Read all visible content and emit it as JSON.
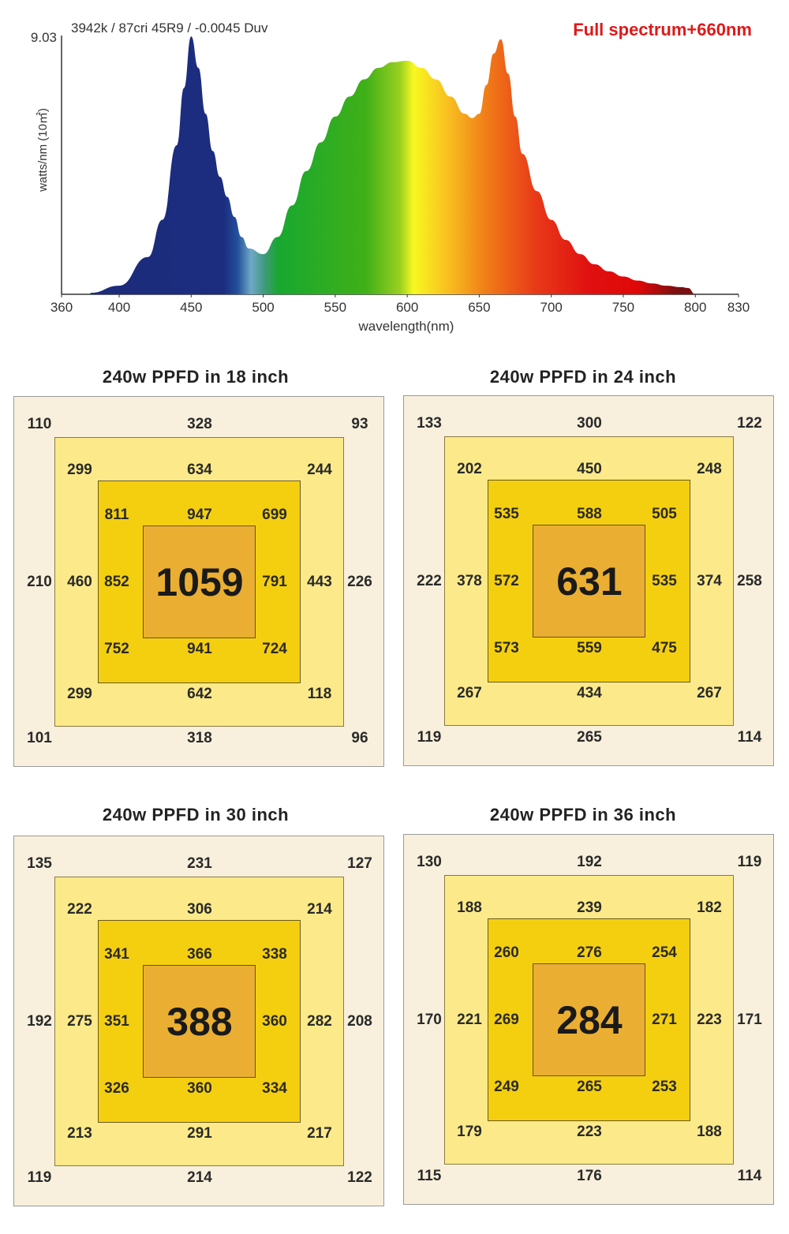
{
  "chart_data": [
    {
      "type": "area",
      "title": "Full spectrum+660nm",
      "subtitle": "3942k / 87cri 45R9 / -0.0045 Duv",
      "xlabel": "wavelength(nm)",
      "ylabel": "watts/nm (10㎡)",
      "ymax_label": "9.03",
      "xlim": [
        360,
        830
      ],
      "ylim": [
        0,
        9.03
      ],
      "x_ticks": [
        "360",
        "400",
        "450",
        "500",
        "550",
        "600",
        "650",
        "700",
        "750",
        "800",
        "830"
      ],
      "x": [
        380,
        400,
        420,
        430,
        440,
        445,
        450,
        455,
        460,
        465,
        470,
        475,
        480,
        485,
        490,
        500,
        510,
        520,
        530,
        540,
        550,
        560,
        570,
        580,
        590,
        600,
        610,
        620,
        630,
        640,
        645,
        650,
        655,
        660,
        665,
        670,
        675,
        680,
        690,
        700,
        710,
        720,
        730,
        740,
        750,
        760,
        770,
        780,
        790,
        795,
        800
      ],
      "values": [
        0.05,
        0.3,
        1.3,
        2.6,
        5.2,
        7.2,
        9.0,
        7.9,
        6.3,
        5.0,
        4.1,
        3.4,
        2.7,
        2.0,
        1.6,
        1.4,
        2.0,
        3.1,
        4.3,
        5.3,
        6.2,
        6.9,
        7.5,
        7.9,
        8.1,
        8.15,
        7.9,
        7.5,
        6.9,
        6.3,
        6.15,
        6.3,
        7.3,
        8.4,
        8.9,
        7.7,
        6.2,
        4.9,
        3.6,
        2.6,
        1.9,
        1.4,
        1.05,
        0.8,
        0.62,
        0.48,
        0.38,
        0.3,
        0.25,
        0.22,
        0.0
      ]
    },
    {
      "type": "heatmap",
      "title": "240w PPFD in 18 inch",
      "center": "1059",
      "ring3": {
        "tl": "811",
        "t": "947",
        "tr": "699",
        "l": "852",
        "r": "791",
        "bl": "752",
        "b": "941",
        "br": "724"
      },
      "ring2": {
        "tl": "299",
        "t": "634",
        "tr": "244",
        "l": "460",
        "r": "443",
        "bl": "299",
        "b": "642",
        "br": "118"
      },
      "ring1": {
        "tl": "110",
        "t": "328",
        "tr": "93",
        "l": "210",
        "r": "226",
        "bl": "101",
        "b": "318",
        "br": "96"
      }
    },
    {
      "type": "heatmap",
      "title": "240w PPFD in 24 inch",
      "center": "631",
      "ring3": {
        "tl": "535",
        "t": "588",
        "tr": "505",
        "l": "572",
        "r": "535",
        "bl": "573",
        "b": "559",
        "br": "475"
      },
      "ring2": {
        "tl": "202",
        "t": "450",
        "tr": "248",
        "l": "378",
        "r": "374",
        "bl": "267",
        "b": "434",
        "br": "267"
      },
      "ring1": {
        "tl": "133",
        "t": "300",
        "tr": "122",
        "l": "222",
        "r": "258",
        "bl": "119",
        "b": "265",
        "br": "114"
      }
    },
    {
      "type": "heatmap",
      "title": "240w PPFD in 30 inch",
      "center": "388",
      "ring3": {
        "tl": "341",
        "t": "366",
        "tr": "338",
        "l": "351",
        "r": "360",
        "bl": "326",
        "b": "360",
        "br": "334"
      },
      "ring2": {
        "tl": "222",
        "t": "306",
        "tr": "214",
        "l": "275",
        "r": "282",
        "bl": "213",
        "b": "291",
        "br": "217"
      },
      "ring1": {
        "tl": "135",
        "t": "231",
        "tr": "127",
        "l": "192",
        "r": "208",
        "bl": "119",
        "b": "214",
        "br": "122"
      }
    },
    {
      "type": "heatmap",
      "title": "240w PPFD in 36 inch",
      "center": "284",
      "ring3": {
        "tl": "260",
        "t": "276",
        "tr": "254",
        "l": "269",
        "r": "271",
        "bl": "249",
        "b": "265",
        "br": "253"
      },
      "ring2": {
        "tl": "188",
        "t": "239",
        "tr": "182",
        "l": "221",
        "r": "223",
        "bl": "179",
        "b": "223",
        "br": "188"
      },
      "ring1": {
        "tl": "130",
        "t": "192",
        "tr": "119",
        "l": "170",
        "r": "171",
        "bl": "115",
        "b": "176",
        "br": "114"
      }
    }
  ],
  "colors": {
    "title_red": "#e01818",
    "ring_outer": "#f8f0dc",
    "ring_2": "#fcea8a",
    "ring_3": "#f4cf10",
    "ring_center": "#eaaf32"
  }
}
